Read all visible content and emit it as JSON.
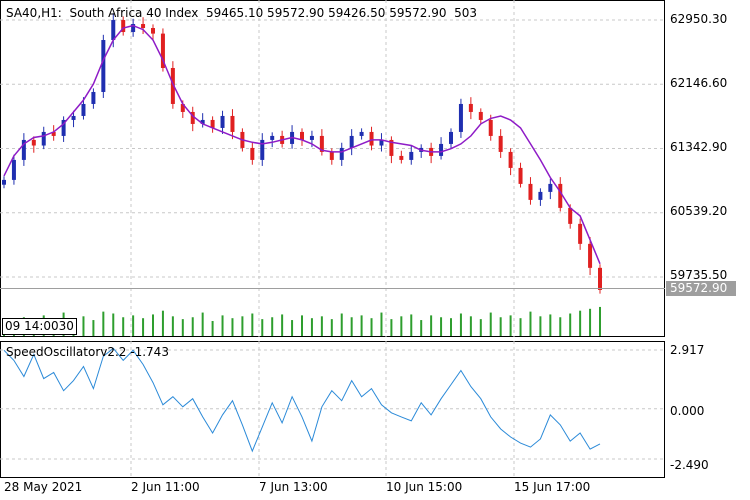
{
  "header": {
    "symbol": "SA40,H1:",
    "description": "South Africa 40 Index",
    "ohlc": "59465.10 59572.90 59426.50 59572.90",
    "volume": "503"
  },
  "price_axis": [
    "62950.30",
    "62146.60",
    "61342.90",
    "60539.20",
    "59735.50"
  ],
  "current_price": "59572.90",
  "time_marker": "09 14:00",
  "time_marker_trailing": "30",
  "oscillator": {
    "title": "SpeedOscillatorv2.2",
    "value": "-1.743",
    "axis": [
      "2.917",
      "0.000",
      "-2.490"
    ]
  },
  "time_axis": [
    "28 May 2021",
    "2 Jun 11:00",
    "7 Jun 13:00",
    "10 Jun 15:00",
    "15 Jun 17:00"
  ],
  "colors": {
    "bull_candle": "#1f2fb0",
    "bear_candle": "#e02020",
    "moving_average": "#8e1bc7",
    "volume": "#2e9e2e",
    "oscillator": "#2b8ad8",
    "grid": "#c8c8c8"
  },
  "chart_data": [
    {
      "type": "candlestick",
      "title": "SA40,H1",
      "ylim": [
        59400,
        63150
      ],
      "ticks": [
        62950.3,
        62146.6,
        61342.9,
        60539.2,
        59735.5
      ],
      "ma_series": [
        61000,
        61250,
        61400,
        61480,
        61500,
        61550,
        61650,
        61800,
        61950,
        62150,
        62450,
        62700,
        62850,
        62880,
        62830,
        62700,
        62450,
        62150,
        61900,
        61750,
        61650,
        61600,
        61550,
        61500,
        61450,
        61420,
        61400,
        61420,
        61450,
        61480,
        61450,
        61400,
        61320,
        61300,
        61300,
        61350,
        61400,
        61450,
        61450,
        61420,
        61400,
        61380,
        61320,
        61300,
        61300,
        61340,
        61400,
        61500,
        61650,
        61720,
        61750,
        61700,
        61600,
        61400,
        61200,
        60980,
        60800,
        60600,
        60500,
        60200,
        59900
      ],
      "closes": [
        60950,
        61200,
        61450,
        61380,
        61550,
        61500,
        61700,
        61750,
        61900,
        62050,
        62700,
        62950,
        62800,
        62900,
        62850,
        62780,
        62350,
        61900,
        61800,
        61650,
        61700,
        61600,
        61750,
        61550,
        61350,
        61200,
        61450,
        61500,
        61400,
        61550,
        61450,
        61500,
        61300,
        61200,
        61350,
        61500,
        61550,
        61380,
        61450,
        61250,
        61200,
        61300,
        61350,
        61250,
        61400,
        61550,
        61900,
        61800,
        61700,
        61500,
        61300,
        61100,
        60900,
        60700,
        60800,
        60900,
        60600,
        60400,
        60150,
        59850,
        59572.9
      ],
      "volumes": [
        14,
        18,
        20,
        16,
        22,
        19,
        25,
        18,
        21,
        17,
        26,
        24,
        20,
        22,
        19,
        23,
        27,
        21,
        18,
        20,
        25,
        16,
        22,
        19,
        21,
        24,
        18,
        20,
        23,
        17,
        22,
        19,
        21,
        18,
        24,
        20,
        22,
        19,
        25,
        18,
        21,
        23,
        17,
        22,
        20,
        19,
        24,
        21,
        18,
        25,
        20,
        22,
        19,
        26,
        21,
        23,
        20,
        24,
        27,
        29,
        31
      ]
    },
    {
      "type": "line",
      "title": "SpeedOscillatorv2.2",
      "ylim": [
        -3.0,
        3.5
      ],
      "ticks": [
        2.917,
        0.0,
        -2.49
      ],
      "values": [
        2.9,
        2.4,
        1.6,
        2.7,
        1.5,
        1.8,
        0.9,
        1.4,
        2.1,
        1.0,
        2.6,
        3.0,
        2.4,
        2.9,
        2.2,
        1.3,
        0.2,
        0.6,
        0.1,
        0.5,
        -0.4,
        -1.2,
        -0.3,
        0.4,
        -0.8,
        -2.1,
        -0.9,
        0.3,
        -0.7,
        0.6,
        -0.4,
        -1.6,
        0.1,
        0.9,
        0.4,
        1.4,
        0.6,
        1.0,
        0.2,
        -0.2,
        -0.4,
        -0.6,
        0.3,
        -0.3,
        0.5,
        1.2,
        1.9,
        1.1,
        0.5,
        -0.4,
        -1.0,
        -1.4,
        -1.7,
        -1.9,
        -1.5,
        -0.3,
        -0.8,
        -1.6,
        -1.2,
        -2.0,
        -1.743
      ]
    }
  ]
}
